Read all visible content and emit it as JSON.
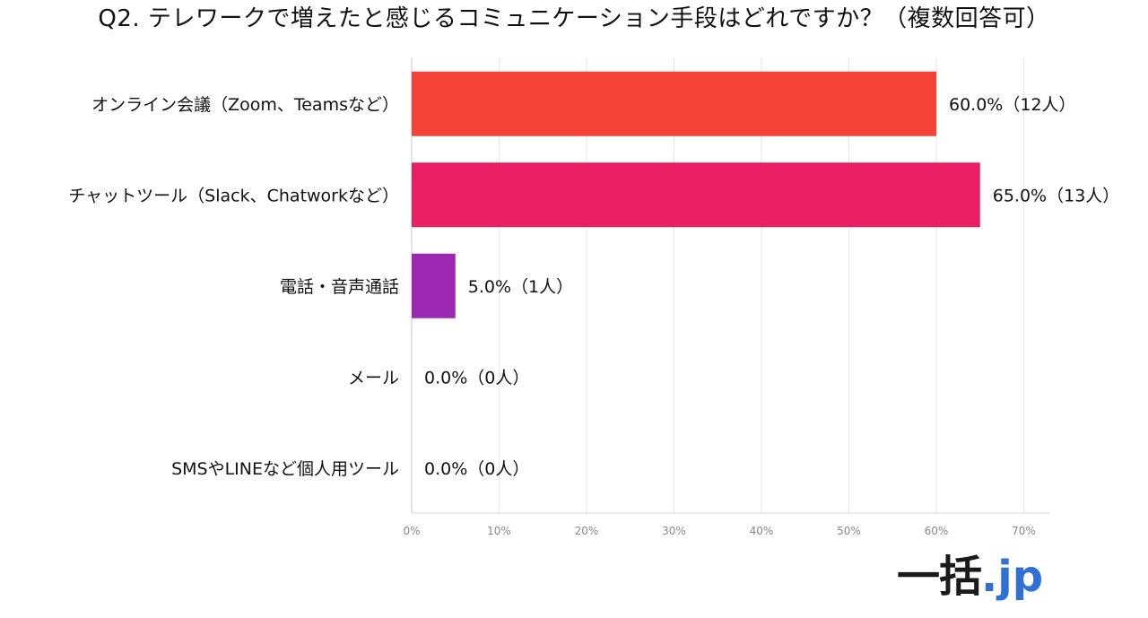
{
  "chart_data": {
    "type": "bar",
    "orientation": "horizontal",
    "title": "Q2. テレワークで増えたと感じるコミュニケーション手段はどれですか？（複数回答可）",
    "categories": [
      "オンライン会議（Zoom、Teamsなど）",
      "チャットツール（Slack、Chatworkなど）",
      "電話・音声通話",
      "メール",
      "SMSやLINEなど個人用ツール"
    ],
    "values": [
      60.0,
      65.0,
      5.0,
      0.0,
      0.0
    ],
    "value_labels": [
      "60.0%（12人）",
      "65.0%（13人）",
      "5.0%（1人）",
      "0.0%（0人）",
      "0.0%（0人）"
    ],
    "colors": [
      "#f44336",
      "#e91e63",
      "#9c27b0",
      "#9c27b0",
      "#9c27b0"
    ],
    "xlim": [
      0,
      73
    ],
    "xticks": [
      0,
      10,
      20,
      30,
      40,
      50,
      60,
      70
    ],
    "xtick_labels": [
      "0%",
      "10%",
      "20%",
      "30%",
      "40%",
      "50%",
      "60%",
      "70%"
    ],
    "grid": true,
    "xlabel": "",
    "ylabel": ""
  },
  "logo": {
    "main": "一括",
    "dot": ".",
    "tld": "jp"
  }
}
